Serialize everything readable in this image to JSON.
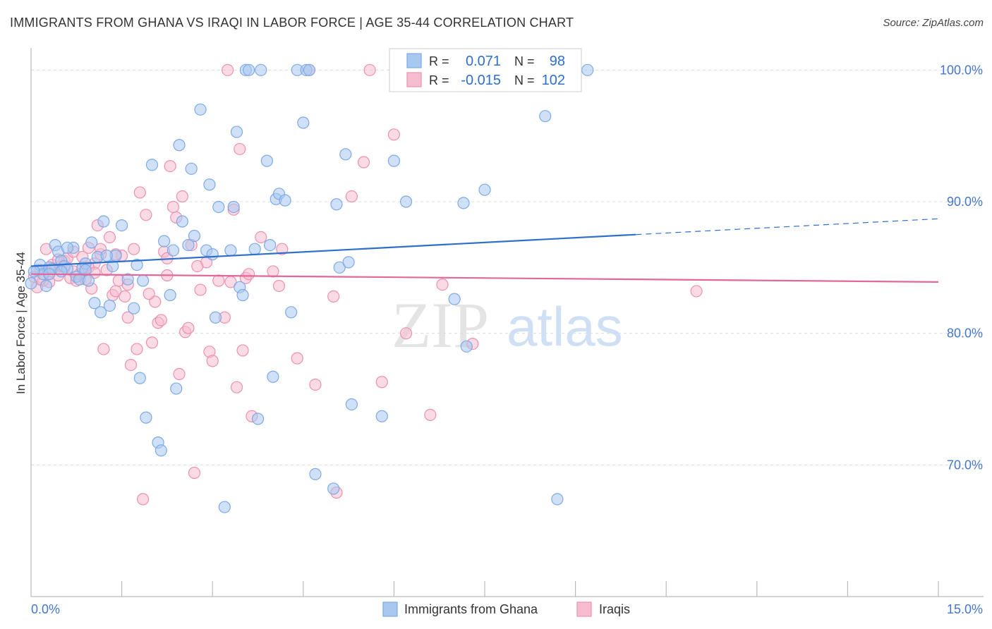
{
  "header": {
    "title": "IMMIGRANTS FROM GHANA VS IRAQI IN LABOR FORCE | AGE 35-44 CORRELATION CHART",
    "source": "Source: ZipAtlas.com"
  },
  "watermark": {
    "zip": "ZIP",
    "atlas": "atlas"
  },
  "legend_box": {
    "rows": [
      {
        "r_label": "R =",
        "r_value": "0.071",
        "n_label": "N =",
        "n_value": "98",
        "color": "#7BAAE8"
      },
      {
        "r_label": "R =",
        "r_value": "-0.015",
        "n_label": "N =",
        "n_value": "102",
        "color": "#F0A0BC"
      }
    ]
  },
  "colors": {
    "blue_fill": "#A9C8F0",
    "blue_stroke": "#7BAAE8",
    "blue_line": "#2E6FCC",
    "pink_fill": "#F6BCD0",
    "pink_stroke": "#EE90B0",
    "pink_line": "#E0689A",
    "axis_text": "#4477CC",
    "grid": "#DDDDDD"
  },
  "chart_data": {
    "type": "scatter",
    "title": "IMMIGRANTS FROM GHANA VS IRAQI IN LABOR FORCE | AGE 35-44 CORRELATION CHART",
    "xlabel": "",
    "ylabel": "In Labor Force | Age 35-44",
    "xlim": [
      0,
      15
    ],
    "ylim": [
      60,
      102
    ],
    "x_tick_labels": [
      "0.0%",
      "15.0%"
    ],
    "y_ticks": [
      70,
      80,
      90,
      100
    ],
    "y_tick_labels": [
      "70.0%",
      "80.0%",
      "90.0%",
      "100.0%"
    ],
    "grid": true,
    "legend_position": "bottom",
    "series": [
      {
        "name": "Immigrants from Ghana",
        "color": "#7BAAE8",
        "trend": {
          "x": [
            0,
            10,
            15
          ],
          "y": [
            85.1,
            87.5,
            88.7
          ],
          "solid_until": 10
        },
        "points": [
          [
            0.0,
            83.8
          ],
          [
            0.1,
            84.8
          ],
          [
            0.15,
            85.2
          ],
          [
            0.2,
            84.5
          ],
          [
            0.25,
            83.6
          ],
          [
            0.3,
            85.0
          ],
          [
            0.35,
            84.9
          ],
          [
            0.4,
            86.7
          ],
          [
            0.45,
            86.2
          ],
          [
            0.5,
            85.5
          ],
          [
            0.55,
            85.1
          ],
          [
            0.6,
            84.9
          ],
          [
            0.7,
            86.5
          ],
          [
            0.75,
            84.3
          ],
          [
            0.8,
            84.1
          ],
          [
            0.85,
            85.0
          ],
          [
            0.9,
            85.3
          ],
          [
            0.95,
            84.0
          ],
          [
            1.0,
            86.9
          ],
          [
            1.05,
            82.3
          ],
          [
            1.1,
            85.8
          ],
          [
            1.15,
            81.6
          ],
          [
            1.2,
            88.5
          ],
          [
            1.3,
            82.1
          ],
          [
            1.35,
            85.1
          ],
          [
            1.4,
            85.9
          ],
          [
            1.5,
            88.2
          ],
          [
            1.6,
            84.1
          ],
          [
            1.7,
            81.9
          ],
          [
            1.75,
            85.2
          ],
          [
            1.8,
            76.6
          ],
          [
            1.9,
            73.6
          ],
          [
            2.0,
            92.8
          ],
          [
            2.1,
            71.7
          ],
          [
            2.15,
            71.1
          ],
          [
            2.2,
            87.0
          ],
          [
            2.3,
            82.9
          ],
          [
            2.4,
            75.8
          ],
          [
            2.45,
            94.3
          ],
          [
            2.5,
            88.5
          ],
          [
            2.6,
            86.7
          ],
          [
            2.65,
            92.5
          ],
          [
            2.7,
            87.4
          ],
          [
            2.8,
            97.0
          ],
          [
            2.9,
            86.3
          ],
          [
            2.95,
            91.3
          ],
          [
            3.0,
            86.0
          ],
          [
            3.05,
            81.2
          ],
          [
            3.1,
            89.6
          ],
          [
            3.2,
            66.8
          ],
          [
            3.3,
            86.3
          ],
          [
            3.35,
            89.6
          ],
          [
            3.4,
            95.3
          ],
          [
            3.45,
            83.5
          ],
          [
            3.5,
            82.9
          ],
          [
            3.55,
            100.0
          ],
          [
            3.6,
            100.0
          ],
          [
            3.7,
            86.4
          ],
          [
            3.75,
            73.5
          ],
          [
            3.8,
            100.0
          ],
          [
            3.9,
            93.1
          ],
          [
            3.95,
            86.7
          ],
          [
            4.0,
            76.7
          ],
          [
            4.05,
            90.2
          ],
          [
            4.1,
            90.6
          ],
          [
            4.2,
            90.1
          ],
          [
            4.3,
            81.6
          ],
          [
            4.4,
            100.0
          ],
          [
            4.5,
            96.0
          ],
          [
            4.55,
            100.0
          ],
          [
            4.6,
            100.0
          ],
          [
            4.7,
            69.3
          ],
          [
            5.0,
            68.2
          ],
          [
            5.05,
            89.8
          ],
          [
            5.1,
            85.0
          ],
          [
            5.2,
            93.6
          ],
          [
            5.25,
            85.4
          ],
          [
            5.3,
            74.6
          ],
          [
            5.8,
            73.7
          ],
          [
            6.0,
            93.1
          ],
          [
            6.2,
            90.0
          ],
          [
            7.0,
            82.6
          ],
          [
            7.15,
            89.9
          ],
          [
            7.2,
            79.0
          ],
          [
            7.5,
            90.9
          ],
          [
            8.5,
            96.5
          ],
          [
            8.7,
            67.4
          ],
          [
            9.2,
            100.0
          ],
          [
            0.05,
            84.7
          ],
          [
            0.3,
            84.5
          ],
          [
            0.6,
            86.5
          ],
          [
            0.9,
            84.8
          ],
          [
            1.25,
            85.9
          ],
          [
            1.85,
            84.0
          ],
          [
            2.35,
            86.3
          ],
          [
            0.5,
            84.7
          ]
        ]
      },
      {
        "name": "Iraqis",
        "color": "#EE90B0",
        "trend": {
          "x": [
            0,
            15
          ],
          "y": [
            84.5,
            83.9
          ],
          "solid_until": 15
        },
        "points": [
          [
            0.05,
            84.3
          ],
          [
            0.1,
            83.5
          ],
          [
            0.15,
            84.8
          ],
          [
            0.2,
            84.0
          ],
          [
            0.25,
            86.4
          ],
          [
            0.3,
            84.6
          ],
          [
            0.35,
            85.2
          ],
          [
            0.4,
            84.9
          ],
          [
            0.45,
            84.4
          ],
          [
            0.5,
            85.1
          ],
          [
            0.55,
            85.5
          ],
          [
            0.6,
            85.7
          ],
          [
            0.65,
            84.2
          ],
          [
            0.7,
            86.2
          ],
          [
            0.75,
            84.0
          ],
          [
            0.8,
            84.5
          ],
          [
            0.85,
            85.8
          ],
          [
            0.9,
            84.1
          ],
          [
            0.95,
            86.5
          ],
          [
            1.0,
            83.4
          ],
          [
            1.05,
            85.3
          ],
          [
            1.1,
            88.2
          ],
          [
            1.15,
            86.0
          ],
          [
            1.2,
            78.8
          ],
          [
            1.25,
            84.8
          ],
          [
            1.3,
            87.3
          ],
          [
            1.35,
            82.9
          ],
          [
            1.4,
            83.2
          ],
          [
            1.45,
            84.0
          ],
          [
            1.5,
            85.9
          ],
          [
            1.55,
            82.8
          ],
          [
            1.6,
            81.2
          ],
          [
            1.65,
            77.6
          ],
          [
            1.7,
            86.4
          ],
          [
            1.75,
            78.8
          ],
          [
            1.8,
            90.7
          ],
          [
            1.85,
            67.4
          ],
          [
            1.9,
            89.0
          ],
          [
            2.0,
            79.3
          ],
          [
            2.05,
            82.4
          ],
          [
            2.1,
            80.8
          ],
          [
            2.15,
            81.0
          ],
          [
            2.2,
            86.2
          ],
          [
            2.25,
            85.7
          ],
          [
            2.3,
            92.7
          ],
          [
            2.35,
            89.6
          ],
          [
            2.4,
            88.8
          ],
          [
            2.45,
            76.9
          ],
          [
            2.5,
            90.4
          ],
          [
            2.55,
            80.1
          ],
          [
            2.6,
            80.4
          ],
          [
            2.65,
            86.7
          ],
          [
            2.7,
            69.4
          ],
          [
            2.8,
            83.3
          ],
          [
            2.9,
            85.4
          ],
          [
            2.95,
            78.6
          ],
          [
            3.0,
            77.9
          ],
          [
            3.1,
            84.0
          ],
          [
            3.2,
            81.2
          ],
          [
            3.25,
            100.0
          ],
          [
            3.3,
            83.9
          ],
          [
            3.35,
            89.4
          ],
          [
            3.4,
            75.9
          ],
          [
            3.45,
            94.0
          ],
          [
            3.5,
            78.7
          ],
          [
            3.55,
            84.2
          ],
          [
            3.6,
            84.5
          ],
          [
            3.65,
            73.7
          ],
          [
            3.8,
            87.3
          ],
          [
            4.0,
            84.7
          ],
          [
            4.1,
            83.6
          ],
          [
            4.15,
            86.4
          ],
          [
            4.4,
            78.1
          ],
          [
            4.6,
            100.0
          ],
          [
            4.7,
            76.1
          ],
          [
            5.0,
            82.8
          ],
          [
            5.05,
            67.9
          ],
          [
            5.3,
            90.4
          ],
          [
            5.5,
            93.0
          ],
          [
            5.6,
            100.0
          ],
          [
            5.8,
            76.3
          ],
          [
            6.0,
            95.1
          ],
          [
            6.2,
            80.0
          ],
          [
            6.6,
            73.8
          ],
          [
            6.8,
            83.7
          ],
          [
            7.0,
            100.0
          ],
          [
            7.3,
            79.2
          ],
          [
            11.0,
            83.2
          ],
          [
            0.3,
            83.9
          ],
          [
            0.45,
            85.6
          ],
          [
            0.7,
            84.7
          ],
          [
            0.95,
            85.0
          ],
          [
            1.15,
            86.4
          ],
          [
            1.4,
            86.0
          ],
          [
            1.6,
            83.7
          ],
          [
            1.95,
            83.0
          ],
          [
            2.25,
            84.4
          ],
          [
            2.75,
            85.1
          ],
          [
            0.15,
            84.1
          ],
          [
            0.55,
            85.0
          ],
          [
            0.85,
            84.9
          ],
          [
            1.05,
            84.6
          ]
        ]
      }
    ]
  },
  "bottom_legend": [
    {
      "label": "Immigrants from Ghana",
      "color": "#7BAAE8"
    },
    {
      "label": "Iraqis",
      "color": "#EE90B0"
    }
  ]
}
